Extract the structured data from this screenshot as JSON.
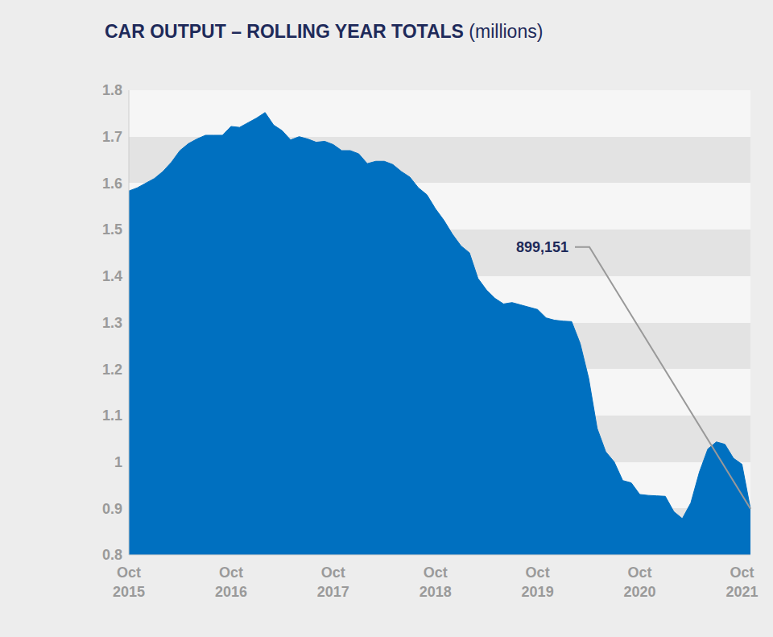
{
  "chart_data": {
    "type": "area",
    "title": "CAR OUTPUT – ROLLING YEAR TOTALS",
    "subtitle": "(millions)",
    "categories": [
      "Oct 2015",
      null,
      null,
      null,
      null,
      null,
      null,
      null,
      null,
      null,
      null,
      null,
      "Oct 2016",
      null,
      null,
      null,
      null,
      null,
      null,
      null,
      null,
      null,
      null,
      null,
      "Oct 2017",
      null,
      null,
      null,
      null,
      null,
      null,
      null,
      null,
      null,
      null,
      null,
      "Oct 2018",
      null,
      null,
      null,
      null,
      null,
      null,
      null,
      null,
      null,
      null,
      null,
      "Oct 2019",
      null,
      null,
      null,
      null,
      null,
      null,
      null,
      null,
      null,
      null,
      null,
      "Oct 2020",
      null,
      null,
      null,
      null,
      null,
      null,
      null,
      null,
      null,
      null,
      null,
      "Oct 2021",
      null
    ],
    "values": [
      1.583,
      1.59,
      1.6,
      1.61,
      1.625,
      1.645,
      1.67,
      1.685,
      1.695,
      1.703,
      1.703,
      1.703,
      1.722,
      1.72,
      1.73,
      1.74,
      1.752,
      1.725,
      1.713,
      1.693,
      1.7,
      1.695,
      1.688,
      1.69,
      1.683,
      1.67,
      1.67,
      1.663,
      1.642,
      1.647,
      1.647,
      1.64,
      1.625,
      1.613,
      1.59,
      1.575,
      1.545,
      1.52,
      1.49,
      1.465,
      1.45,
      1.395,
      1.37,
      1.352,
      1.34,
      1.343,
      1.338,
      1.333,
      1.328,
      1.31,
      1.305,
      1.303,
      1.302,
      1.255,
      1.18,
      1.072,
      1.022,
      1.0,
      0.96,
      0.955,
      0.93,
      0.928,
      0.927,
      0.926,
      0.893,
      0.878,
      0.912,
      0.978,
      1.028,
      1.043,
      1.038,
      1.008,
      0.995,
      0.899151
    ],
    "color": "#0070c0",
    "ylim": [
      0.8,
      1.8
    ],
    "yticks": [
      0.8,
      0.9,
      1,
      1.1,
      1.2,
      1.3,
      1.4,
      1.5,
      1.6,
      1.7,
      1.8
    ],
    "grid": true,
    "annotations": [
      "899,151"
    ]
  }
}
